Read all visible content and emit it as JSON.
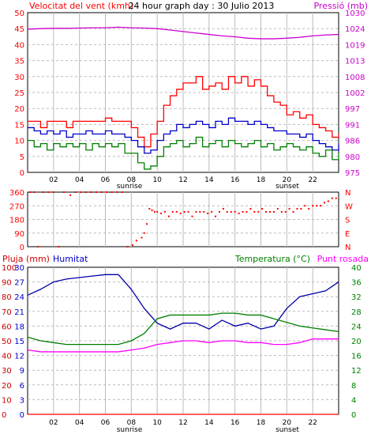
{
  "panel1": {
    "title": "24 hour graph day : 30 Julio 2013",
    "left_label": "Velocitat del vent (kmh)",
    "right_label": "Pressió (mb)",
    "left_ticks": [
      "0",
      "5",
      "10",
      "15",
      "20",
      "25",
      "30",
      "35",
      "40",
      "45",
      "50"
    ],
    "right_ticks": [
      "975",
      "980",
      "986",
      "991",
      "997",
      "1002",
      "1008",
      "1013",
      "1019",
      "1024",
      "1030"
    ],
    "x_ticks": [
      "02",
      "04",
      "06",
      "08",
      "10",
      "12",
      "14",
      "16",
      "18",
      "20",
      "22"
    ],
    "sunrise_label": "sunrise",
    "sunset_label": "sunset"
  },
  "panel2": {
    "left_ticks": [
      "0",
      "90",
      "180",
      "270",
      "360"
    ],
    "right_ticks": [
      "N",
      "E",
      "S",
      "W",
      "N"
    ]
  },
  "panel3": {
    "label_rain": "Pluja (mm)",
    "label_humidity": "Humitat",
    "label_temp": "Temperatura (°C)",
    "label_dew": "Punt rosada",
    "rain_ticks": [
      "0",
      "10",
      "20",
      "30",
      "40",
      "50",
      "60",
      "70",
      "80",
      "90",
      "100"
    ],
    "humidity_ticks": [
      "0",
      "3",
      "6",
      "9",
      "12",
      "15",
      "18",
      "21",
      "24",
      "27",
      "30"
    ],
    "temp_ticks": [
      "0",
      "4",
      "8",
      "12",
      "16",
      "20",
      "24",
      "28",
      "32",
      "36",
      "40"
    ],
    "x_ticks": [
      "02",
      "04",
      "06",
      "08",
      "10",
      "12",
      "14",
      "16",
      "18",
      "20",
      "22"
    ],
    "sunrise_label": "sunrise",
    "sunset_label": "sunset"
  },
  "colors": {
    "gust": "#ff0000",
    "wind_avg": "#0000cc",
    "wind_min": "#008000",
    "pressure": "#cc00cc",
    "direction": "#ff0000",
    "humidity": "#0000aa",
    "temperature": "#008000",
    "dewpoint": "#ff00ff",
    "rain": "#ff0000",
    "grid": "#bbbbbb"
  },
  "chart_data": [
    {
      "type": "line",
      "xlim": [
        0,
        24
      ],
      "ylim_left": [
        0,
        50
      ],
      "ylim_right": [
        975,
        1030
      ],
      "x_ticks": [
        2,
        4,
        6,
        8,
        10,
        12,
        14,
        16,
        18,
        20,
        22
      ],
      "series": [
        {
          "key": "gust",
          "axis": "left",
          "x": [
            0,
            0.5,
            1,
            1.5,
            2,
            2.5,
            3,
            3.5,
            4,
            4.5,
            5,
            5.5,
            6,
            6.5,
            7,
            7.5,
            8,
            8.5,
            9,
            9.5,
            10,
            10.5,
            11,
            11.5,
            12,
            12.5,
            13,
            13.5,
            14,
            14.5,
            15,
            15.5,
            16,
            16.5,
            17,
            17.5,
            18,
            18.5,
            19,
            19.5,
            20,
            20.5,
            21,
            21.5,
            22,
            22.5,
            23,
            23.5,
            24
          ],
          "y": [
            16,
            16,
            14,
            16,
            16,
            16,
            14,
            16,
            16,
            16,
            16,
            16,
            17,
            16,
            16,
            16,
            14,
            11,
            8,
            12,
            16,
            21,
            24,
            26,
            28,
            28,
            30,
            26,
            27,
            28,
            26,
            30,
            28,
            30,
            27,
            29,
            27,
            24,
            22,
            21,
            18,
            19,
            17,
            18,
            15,
            14,
            13,
            11,
            12
          ]
        },
        {
          "key": "wind_avg",
          "axis": "left",
          "x": [
            0,
            0.5,
            1,
            1.5,
            2,
            2.5,
            3,
            3.5,
            4,
            4.5,
            5,
            5.5,
            6,
            6.5,
            7,
            7.5,
            8,
            8.5,
            9,
            9.5,
            10,
            10.5,
            11,
            11.5,
            12,
            12.5,
            13,
            13.5,
            14,
            14.5,
            15,
            15.5,
            16,
            16.5,
            17,
            17.5,
            18,
            18.5,
            19,
            19.5,
            20,
            20.5,
            21,
            21.5,
            22,
            22.5,
            23,
            23.5,
            24
          ],
          "y": [
            14,
            13,
            12,
            13,
            12,
            13,
            11,
            12,
            12,
            13,
            12,
            12,
            13,
            12,
            12,
            11,
            10,
            8,
            6,
            7,
            10,
            12,
            13,
            15,
            14,
            15,
            16,
            15,
            14,
            16,
            15,
            17,
            16,
            16,
            15,
            16,
            15,
            14,
            13,
            13,
            12,
            12,
            11,
            12,
            10,
            9,
            8,
            7,
            9
          ]
        },
        {
          "key": "wind_min",
          "axis": "left",
          "x": [
            0,
            0.5,
            1,
            1.5,
            2,
            2.5,
            3,
            3.5,
            4,
            4.5,
            5,
            5.5,
            6,
            6.5,
            7,
            7.5,
            8,
            8.5,
            9,
            9.5,
            10,
            10.5,
            11,
            11.5,
            12,
            12.5,
            13,
            13.5,
            14,
            14.5,
            15,
            15.5,
            16,
            16.5,
            17,
            17.5,
            18,
            18.5,
            19,
            19.5,
            20,
            20.5,
            21,
            21.5,
            22,
            22.5,
            23,
            23.5,
            24
          ],
          "y": [
            10,
            8,
            9,
            7,
            9,
            8,
            9,
            8,
            9,
            7,
            9,
            8,
            9,
            8,
            9,
            6,
            6,
            3,
            1,
            2,
            5,
            8,
            9,
            10,
            8,
            9,
            11,
            8,
            9,
            10,
            8,
            10,
            9,
            8,
            9,
            10,
            8,
            9,
            7,
            8,
            9,
            8,
            7,
            8,
            6,
            5,
            7,
            4,
            6
          ]
        },
        {
          "key": "pressure",
          "axis": "right",
          "x": [
            0,
            1,
            2,
            3,
            4,
            5,
            6,
            7,
            8,
            9,
            10,
            11,
            12,
            13,
            14,
            15,
            16,
            17,
            18,
            19,
            20,
            21,
            22,
            23,
            24
          ],
          "y": [
            1024.3,
            1024.5,
            1024.6,
            1024.6,
            1024.7,
            1024.8,
            1024.8,
            1025.0,
            1024.8,
            1024.7,
            1024.5,
            1024.0,
            1023.5,
            1023.0,
            1022.5,
            1022.0,
            1021.7,
            1021.2,
            1021.0,
            1021.0,
            1021.2,
            1021.5,
            1022.0,
            1022.3,
            1022.5
          ]
        }
      ]
    },
    {
      "type": "scatter",
      "xlim": [
        0,
        24
      ],
      "ylim": [
        0,
        360
      ],
      "series": [
        {
          "key": "direction",
          "x": [
            0.2,
            0.5,
            0.8,
            1.2,
            1.6,
            2.0,
            2.4,
            2.8,
            3.3,
            3.7,
            4.1,
            4.5,
            4.9,
            5.3,
            5.7,
            6.1,
            6.5,
            6.9,
            7.3,
            7.7,
            8.1,
            8.4,
            8.8,
            9.0,
            9.2,
            9.4,
            9.6,
            9.8,
            10.0,
            10.3,
            10.6,
            10.9,
            11.2,
            11.5,
            11.8,
            12.1,
            12.4,
            12.7,
            13.0,
            13.3,
            13.6,
            13.9,
            14.2,
            14.5,
            14.8,
            15.1,
            15.4,
            15.7,
            16.0,
            16.3,
            16.6,
            16.9,
            17.2,
            17.5,
            17.8,
            18.1,
            18.4,
            18.7,
            19.0,
            19.3,
            19.6,
            19.9,
            20.2,
            20.5,
            20.8,
            21.1,
            21.4,
            21.7,
            22.0,
            22.3,
            22.6,
            22.9,
            23.2,
            23.5,
            23.8
          ],
          "y": [
            360,
            360,
            0,
            360,
            360,
            360,
            0,
            360,
            340,
            360,
            360,
            360,
            360,
            360,
            360,
            360,
            360,
            360,
            360,
            0,
            10,
            40,
            60,
            90,
            150,
            250,
            240,
            230,
            230,
            220,
            230,
            200,
            230,
            230,
            220,
            230,
            230,
            200,
            230,
            230,
            230,
            220,
            230,
            200,
            230,
            250,
            230,
            230,
            230,
            220,
            230,
            230,
            250,
            230,
            230,
            250,
            230,
            230,
            230,
            250,
            230,
            230,
            250,
            230,
            250,
            250,
            270,
            250,
            270,
            270,
            270,
            290,
            300,
            320,
            320
          ]
        }
      ]
    },
    {
      "type": "line",
      "xlim": [
        0,
        24
      ],
      "ylim_rain": [
        0,
        100
      ],
      "ylim_humidity": [
        0,
        30
      ],
      "ylim_temp": [
        0,
        40
      ],
      "series": [
        {
          "key": "humidity",
          "axis": "rain",
          "name": "Humitat",
          "x": [
            0,
            1,
            2,
            3,
            4,
            5,
            6,
            7,
            8,
            9,
            10,
            11,
            12,
            13,
            14,
            15,
            16,
            17,
            18,
            19,
            20,
            21,
            22,
            23,
            24
          ],
          "y": [
            81,
            85,
            90,
            92,
            93,
            94,
            95,
            95,
            85,
            72,
            62,
            58,
            62,
            62,
            58,
            64,
            60,
            62,
            58,
            60,
            72,
            80,
            82,
            84,
            90
          ]
        },
        {
          "key": "temperature",
          "axis": "temp",
          "name": "Temperatura (°C)",
          "x": [
            0,
            1,
            2,
            3,
            4,
            5,
            6,
            7,
            8,
            9,
            10,
            11,
            12,
            13,
            14,
            15,
            16,
            17,
            18,
            19,
            20,
            21,
            22,
            23,
            24
          ],
          "y": [
            21,
            20,
            19.5,
            19,
            19,
            19,
            19,
            19,
            20,
            22,
            26,
            27,
            27,
            27,
            27,
            27.5,
            27.5,
            27,
            27,
            26,
            25,
            24,
            23.5,
            23,
            22.5
          ]
        },
        {
          "key": "dewpoint",
          "axis": "temp",
          "name": "Punt rosada",
          "x": [
            0,
            1,
            2,
            3,
            4,
            5,
            6,
            7,
            8,
            9,
            10,
            11,
            12,
            13,
            14,
            15,
            16,
            17,
            18,
            19,
            20,
            21,
            22,
            23,
            24
          ],
          "y": [
            17.5,
            17,
            17,
            17,
            17,
            17,
            17,
            17,
            17.5,
            18,
            19,
            19.5,
            20,
            20,
            19.5,
            20,
            20,
            19.5,
            19.5,
            19,
            19,
            19.5,
            20.5,
            20.5,
            20.5
          ]
        },
        {
          "key": "rain",
          "axis": "rain",
          "name": "Pluja (mm)",
          "x": [
            0,
            24
          ],
          "y": [
            0,
            0
          ]
        }
      ]
    }
  ]
}
